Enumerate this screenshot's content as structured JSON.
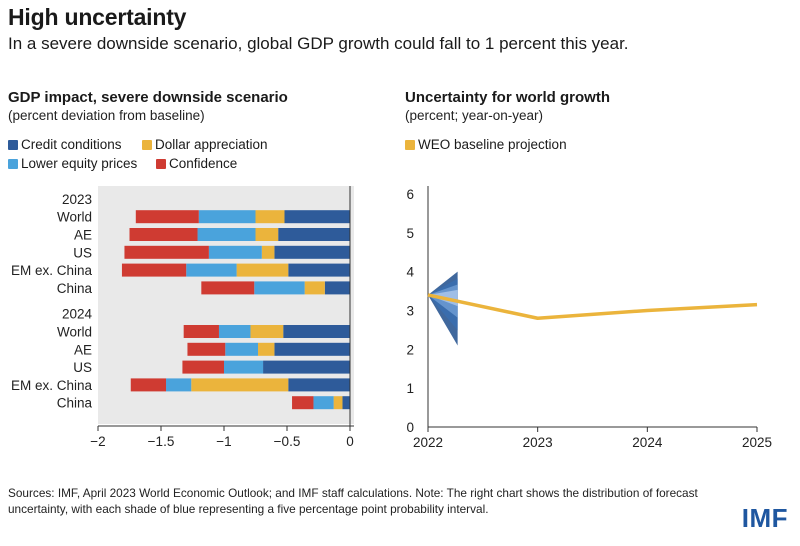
{
  "header": {
    "title": "High uncertainty",
    "subtitle": "In a severe downside scenario, global GDP growth could fall to 1 percent this year."
  },
  "left_panel": {
    "title": "GDP impact, severe downside scenario",
    "subtitle": "(percent deviation from baseline)",
    "legend": [
      {
        "label": "Credit conditions",
        "color": "#2e5b9a"
      },
      {
        "label": "Dollar appreciation",
        "color": "#ebb43c"
      },
      {
        "label": "Lower equity prices",
        "color": "#4aa3dc"
      },
      {
        "label": "Confidence",
        "color": "#cf3b32"
      }
    ]
  },
  "right_panel": {
    "title": "Uncertainty for world growth",
    "subtitle": "(percent; year-on-year)",
    "legend": [
      {
        "label": "WEO baseline projection",
        "color": "#ebb43c"
      }
    ]
  },
  "chart_data": [
    {
      "type": "bar",
      "orientation": "horizontal",
      "stacked": true,
      "title": "GDP impact, severe downside scenario",
      "subtitle": "(percent deviation from baseline)",
      "groups": [
        {
          "label": "2023",
          "rows": [
            {
              "label": "World",
              "credit": -0.52,
              "dollar": -0.23,
              "equity": -0.45,
              "confidence": -0.5
            },
            {
              "label": "AE",
              "credit": -0.57,
              "dollar": -0.18,
              "equity": -0.46,
              "confidence": -0.54
            },
            {
              "label": "US",
              "credit": -0.6,
              "dollar": -0.1,
              "equity": -0.42,
              "confidence": -0.67
            },
            {
              "label": "EM ex. China",
              "credit": -0.49,
              "dollar": -0.41,
              "equity": -0.4,
              "confidence": -0.51
            },
            {
              "label": "China",
              "credit": -0.2,
              "dollar": -0.16,
              "equity": -0.4,
              "confidence": -0.42
            }
          ]
        },
        {
          "label": "2024",
          "rows": [
            {
              "label": "World",
              "credit": -0.53,
              "dollar": -0.26,
              "equity": -0.25,
              "confidence": -0.28
            },
            {
              "label": "AE",
              "credit": -0.6,
              "dollar": -0.13,
              "equity": -0.26,
              "confidence": -0.3
            },
            {
              "label": "US",
              "credit": -0.69,
              "dollar": 0,
              "equity": -0.31,
              "confidence": -0.33
            },
            {
              "label": "EM ex. China",
              "credit": -0.49,
              "dollar": -0.77,
              "equity": -0.2,
              "confidence": -0.28
            },
            {
              "label": "China",
              "credit": -0.06,
              "dollar": -0.07,
              "equity": -0.16,
              "confidence": -0.17
            }
          ]
        }
      ],
      "series": [
        {
          "key": "credit",
          "name": "Credit conditions",
          "color": "#2e5b9a"
        },
        {
          "key": "dollar",
          "name": "Dollar appreciation",
          "color": "#ebb43c"
        },
        {
          "key": "equity",
          "name": "Lower equity prices",
          "color": "#4aa3dc"
        },
        {
          "key": "confidence",
          "name": "Confidence",
          "color": "#cf3b32"
        }
      ],
      "xlim": [
        -2,
        0
      ],
      "xticks": [
        "−2",
        "−1.5",
        "−1",
        "−0.5",
        "0"
      ],
      "xtick_values": [
        -2,
        -1.5,
        -1,
        -0.5,
        0
      ]
    },
    {
      "type": "line",
      "title": "Uncertainty for world growth",
      "subtitle": "(percent; year-on-year)",
      "x": [
        2022,
        2023,
        2024,
        2025
      ],
      "series": [
        {
          "name": "WEO baseline projection",
          "color": "#ebb43c",
          "values": [
            3.4,
            2.8,
            3.0,
            3.15
          ]
        }
      ],
      "fan_colors": [
        "#1f4e8c",
        "#3a6fb0",
        "#6d9bd2",
        "#a9c6ea"
      ],
      "fan_origin": {
        "x": 2022,
        "y": 3.4
      },
      "xlim": [
        2022,
        2025
      ],
      "ylim": [
        0,
        6
      ],
      "yticks": [
        0,
        1,
        2,
        3,
        4,
        5,
        6
      ],
      "xticks": [
        2022,
        2023,
        2024,
        2025
      ]
    }
  ],
  "footer": {
    "note": "Sources: IMF, April 2023 World Economic Outlook; and IMF staff calculations. Note: The right chart shows the distribution of forecast uncertainty, with each shade of blue representing a five percentage point probability interval.",
    "logo": "IMF"
  }
}
